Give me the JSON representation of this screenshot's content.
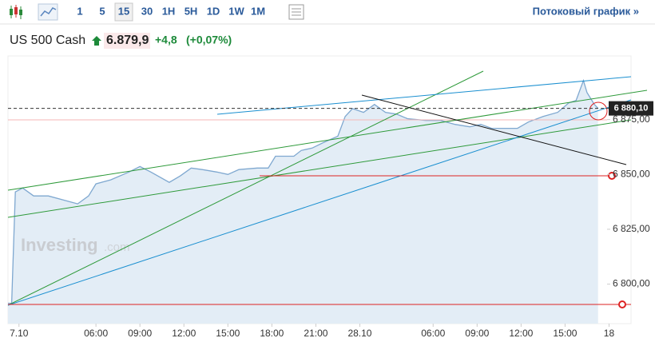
{
  "toolbar": {
    "intervals": [
      "1",
      "5",
      "15",
      "30",
      "1H",
      "5H",
      "1D",
      "1W",
      "1M"
    ],
    "selected": 2,
    "link": "Потоковый график »"
  },
  "header": {
    "title": "US 500 Cash",
    "price": "6.879,9",
    "change": "+4,8",
    "change_pct": "(+0,07%)"
  },
  "watermark": {
    "brand": "Investing",
    "suffix": ".com"
  },
  "chart_data": {
    "type": "area",
    "color": "#7fa8d0",
    "fill": "#e3edf6",
    "x": [
      0,
      1,
      2,
      4,
      7,
      11,
      15,
      19,
      22,
      24,
      28,
      33,
      36,
      39,
      44,
      47,
      50,
      53,
      57,
      60,
      63,
      68,
      71,
      73,
      78,
      80,
      83,
      86,
      90,
      92,
      94,
      97,
      100,
      103,
      106,
      109,
      114,
      118,
      122,
      126,
      129,
      132,
      135,
      139,
      142,
      146,
      150,
      153,
      155,
      157,
      158,
      160,
      161
    ],
    "values": [
      6791.3,
      6791.3,
      6842.0,
      6843.8,
      6840.2,
      6840.2,
      6838.4,
      6836.6,
      6840.2,
      6845.7,
      6847.5,
      6851.1,
      6853.6,
      6851.1,
      6846.4,
      6849.3,
      6852.9,
      6852.2,
      6851.1,
      6850.0,
      6852.2,
      6852.9,
      6852.9,
      6858.3,
      6858.3,
      6860.9,
      6862.0,
      6864.5,
      6867.4,
      6876.4,
      6880.0,
      6878.3,
      6881.9,
      6878.3,
      6877.5,
      6875.4,
      6874.6,
      6874.6,
      6872.8,
      6871.7,
      6872.8,
      6871.0,
      6871.0,
      6871.0,
      6873.9,
      6876.4,
      6878.3,
      6882.6,
      6883.7,
      6892.8,
      6887.3,
      6881.9,
      6880.1
    ],
    "xlim": [
      0,
      170
    ],
    "xticks": [
      {
        "value": 3,
        "label": "7.10"
      },
      {
        "value": 24,
        "label": "06:00"
      },
      {
        "value": 36,
        "label": "09:00"
      },
      {
        "value": 48,
        "label": "12:00"
      },
      {
        "value": 60,
        "label": "15:00"
      },
      {
        "value": 72,
        "label": "18:00"
      },
      {
        "value": 84,
        "label": "21:00"
      },
      {
        "value": 96,
        "label": "28.10"
      },
      {
        "value": 116,
        "label": "06:00"
      },
      {
        "value": 128,
        "label": "09:00"
      },
      {
        "value": 140,
        "label": "12:00"
      },
      {
        "value": 152,
        "label": "15:00"
      },
      {
        "value": 164,
        "label": "18"
      }
    ],
    "ylim": [
      6782,
      6904
    ],
    "yticks": [
      {
        "value": 6800,
        "label": "6 800,00"
      },
      {
        "value": 6825,
        "label": "6 825,00"
      },
      {
        "value": 6850,
        "label": "6 850,00"
      },
      {
        "value": 6875,
        "label": "6 875,00"
      }
    ],
    "last_price": {
      "value": 6880.1,
      "label": "6 880,10"
    },
    "grid": false
  }
}
